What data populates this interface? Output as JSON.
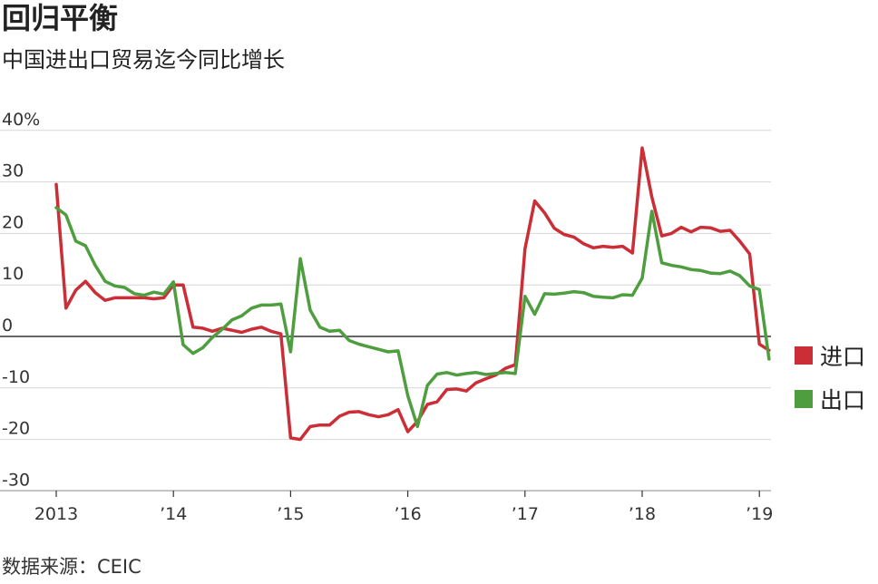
{
  "header": {
    "title": "回归平衡",
    "subtitle": "中国进出口贸易迄今同比增长"
  },
  "footer": {
    "source": "数据来源：CEIC"
  },
  "chart_data": {
    "type": "line",
    "title": "回归平衡",
    "subtitle": "中国进出口贸易迄今同比增长",
    "xlabel": "",
    "ylabel": "",
    "ylim": [
      -30,
      40
    ],
    "xlim": [
      2013.0,
      2019.17
    ],
    "grid": true,
    "legend_position": "right",
    "y_ticks": [
      {
        "value": 40,
        "label": "40%"
      },
      {
        "value": 30,
        "label": "30"
      },
      {
        "value": 20,
        "label": "20"
      },
      {
        "value": 10,
        "label": "10"
      },
      {
        "value": 0,
        "label": "0"
      },
      {
        "value": -10,
        "label": "-10"
      },
      {
        "value": -20,
        "label": "-20"
      },
      {
        "value": -30,
        "label": "-30"
      }
    ],
    "x_ticks": [
      {
        "value": 2013,
        "label": "2013"
      },
      {
        "value": 2014,
        "label": "’14"
      },
      {
        "value": 2015,
        "label": "’15"
      },
      {
        "value": 2016,
        "label": "’16"
      },
      {
        "value": 2017,
        "label": "’17"
      },
      {
        "value": 2018,
        "label": "’18"
      },
      {
        "value": 2019,
        "label": "’19"
      }
    ],
    "series": [
      {
        "name": "进口",
        "color": "#cc2e37",
        "points": [
          [
            2013.0,
            29.5
          ],
          [
            2013.083,
            5.5
          ],
          [
            2013.167,
            9.0
          ],
          [
            2013.25,
            10.7
          ],
          [
            2013.333,
            8.5
          ],
          [
            2013.417,
            7.0
          ],
          [
            2013.5,
            7.5
          ],
          [
            2013.583,
            7.5
          ],
          [
            2013.667,
            7.5
          ],
          [
            2013.75,
            7.5
          ],
          [
            2013.833,
            7.3
          ],
          [
            2013.917,
            7.5
          ],
          [
            2014.0,
            10.0
          ],
          [
            2014.083,
            10.0
          ],
          [
            2014.167,
            1.8
          ],
          [
            2014.25,
            1.6
          ],
          [
            2014.333,
            1.0
          ],
          [
            2014.417,
            1.6
          ],
          [
            2014.5,
            1.2
          ],
          [
            2014.583,
            0.8
          ],
          [
            2014.667,
            1.4
          ],
          [
            2014.75,
            1.8
          ],
          [
            2014.833,
            1.0
          ],
          [
            2014.917,
            0.5
          ],
          [
            2015.0,
            -19.7
          ],
          [
            2015.083,
            -20.0
          ],
          [
            2015.167,
            -17.5
          ],
          [
            2015.25,
            -17.2
          ],
          [
            2015.333,
            -17.2
          ],
          [
            2015.417,
            -15.5
          ],
          [
            2015.5,
            -14.7
          ],
          [
            2015.583,
            -14.6
          ],
          [
            2015.667,
            -15.2
          ],
          [
            2015.75,
            -15.6
          ],
          [
            2015.833,
            -15.2
          ],
          [
            2015.917,
            -14.2
          ],
          [
            2016.0,
            -18.5
          ],
          [
            2016.083,
            -16.5
          ],
          [
            2016.167,
            -13.2
          ],
          [
            2016.25,
            -12.7
          ],
          [
            2016.333,
            -10.3
          ],
          [
            2016.417,
            -10.2
          ],
          [
            2016.5,
            -10.6
          ],
          [
            2016.583,
            -9.0
          ],
          [
            2016.667,
            -8.2
          ],
          [
            2016.75,
            -7.5
          ],
          [
            2016.833,
            -6.2
          ],
          [
            2016.917,
            -5.5
          ],
          [
            2017.0,
            17.0
          ],
          [
            2017.083,
            26.3
          ],
          [
            2017.167,
            24.0
          ],
          [
            2017.25,
            21.0
          ],
          [
            2017.333,
            19.8
          ],
          [
            2017.417,
            19.3
          ],
          [
            2017.5,
            18.0
          ],
          [
            2017.583,
            17.2
          ],
          [
            2017.667,
            17.5
          ],
          [
            2017.75,
            17.3
          ],
          [
            2017.833,
            17.5
          ],
          [
            2017.917,
            16.2
          ],
          [
            2018.0,
            36.6
          ],
          [
            2018.083,
            27.0
          ],
          [
            2018.167,
            19.5
          ],
          [
            2018.25,
            20.0
          ],
          [
            2018.333,
            21.2
          ],
          [
            2018.417,
            20.3
          ],
          [
            2018.5,
            21.2
          ],
          [
            2018.583,
            21.1
          ],
          [
            2018.667,
            20.4
          ],
          [
            2018.75,
            20.6
          ],
          [
            2018.833,
            18.5
          ],
          [
            2018.917,
            16.0
          ],
          [
            2019.0,
            -1.5
          ],
          [
            2019.083,
            -2.7
          ]
        ]
      },
      {
        "name": "出口",
        "color": "#4e9e3f",
        "points": [
          [
            2013.0,
            25.0
          ],
          [
            2013.083,
            23.6
          ],
          [
            2013.167,
            18.5
          ],
          [
            2013.25,
            17.6
          ],
          [
            2013.333,
            13.8
          ],
          [
            2013.417,
            10.7
          ],
          [
            2013.5,
            9.8
          ],
          [
            2013.583,
            9.5
          ],
          [
            2013.667,
            8.3
          ],
          [
            2013.75,
            8.0
          ],
          [
            2013.833,
            8.6
          ],
          [
            2013.917,
            8.2
          ],
          [
            2014.0,
            10.6
          ],
          [
            2014.083,
            -1.6
          ],
          [
            2014.167,
            -3.3
          ],
          [
            2014.25,
            -2.2
          ],
          [
            2014.333,
            -0.2
          ],
          [
            2014.417,
            1.4
          ],
          [
            2014.5,
            3.2
          ],
          [
            2014.583,
            4.0
          ],
          [
            2014.667,
            5.5
          ],
          [
            2014.75,
            6.1
          ],
          [
            2014.833,
            6.1
          ],
          [
            2014.917,
            6.3
          ],
          [
            2015.0,
            -3.0
          ],
          [
            2015.083,
            15.1
          ],
          [
            2015.167,
            5.1
          ],
          [
            2015.25,
            1.8
          ],
          [
            2015.333,
            1.0
          ],
          [
            2015.417,
            1.2
          ],
          [
            2015.5,
            -0.8
          ],
          [
            2015.583,
            -1.5
          ],
          [
            2015.667,
            -2.0
          ],
          [
            2015.75,
            -2.5
          ],
          [
            2015.833,
            -3.0
          ],
          [
            2015.917,
            -2.8
          ],
          [
            2016.0,
            -11.5
          ],
          [
            2016.083,
            -17.5
          ],
          [
            2016.167,
            -9.5
          ],
          [
            2016.25,
            -7.3
          ],
          [
            2016.333,
            -7.0
          ],
          [
            2016.417,
            -7.5
          ],
          [
            2016.5,
            -7.2
          ],
          [
            2016.583,
            -7.0
          ],
          [
            2016.667,
            -7.4
          ],
          [
            2016.75,
            -7.2
          ],
          [
            2016.833,
            -7.0
          ],
          [
            2016.917,
            -7.2
          ],
          [
            2017.0,
            7.8
          ],
          [
            2017.083,
            4.3
          ],
          [
            2017.167,
            8.3
          ],
          [
            2017.25,
            8.2
          ],
          [
            2017.333,
            8.4
          ],
          [
            2017.417,
            8.7
          ],
          [
            2017.5,
            8.5
          ],
          [
            2017.583,
            7.8
          ],
          [
            2017.667,
            7.6
          ],
          [
            2017.75,
            7.5
          ],
          [
            2017.833,
            8.1
          ],
          [
            2017.917,
            8.0
          ],
          [
            2018.0,
            11.3
          ],
          [
            2018.083,
            24.3
          ],
          [
            2018.167,
            14.3
          ],
          [
            2018.25,
            13.8
          ],
          [
            2018.333,
            13.5
          ],
          [
            2018.417,
            13.0
          ],
          [
            2018.5,
            12.8
          ],
          [
            2018.583,
            12.3
          ],
          [
            2018.667,
            12.2
          ],
          [
            2018.75,
            12.7
          ],
          [
            2018.833,
            11.8
          ],
          [
            2018.917,
            9.8
          ],
          [
            2019.0,
            9.1
          ],
          [
            2019.083,
            -4.4
          ]
        ]
      }
    ]
  }
}
